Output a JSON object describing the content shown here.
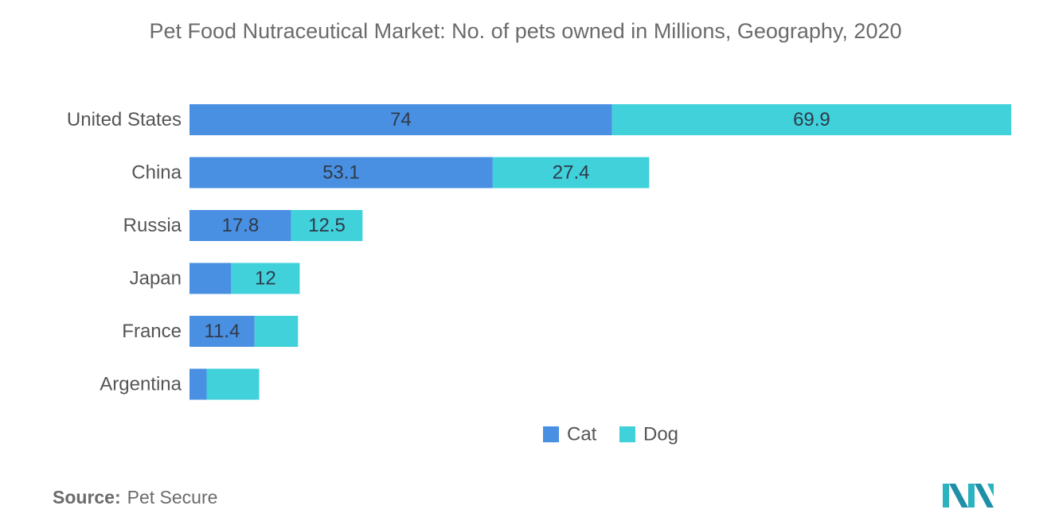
{
  "title": "Pet Food Nutraceutical Market:  No. of pets owned in Millions, Geography, 2020",
  "source": {
    "label": "Source:",
    "text": "Pet Secure"
  },
  "colors": {
    "cat": "#4a90e2",
    "dog": "#40d1db",
    "label_text": "#2f3a4a",
    "axis_text": "#555555"
  },
  "chart_data": {
    "type": "bar",
    "orientation": "horizontal",
    "stacked": true,
    "categories": [
      "United States",
      "China",
      "Russia",
      "Japan",
      "France",
      "Argentina"
    ],
    "series": [
      {
        "name": "Cat",
        "values": [
          74,
          53.1,
          17.8,
          7.3,
          11.4,
          3
        ],
        "labels": [
          "74",
          "53.1",
          "17.8",
          "",
          "11.4",
          ""
        ]
      },
      {
        "name": "Dog",
        "values": [
          69.9,
          27.4,
          12.5,
          12,
          7.6,
          9.2
        ],
        "labels": [
          "69.9",
          "27.4",
          "12.5",
          "12",
          "",
          ""
        ]
      }
    ],
    "xlim": [
      0,
      145
    ],
    "grid": false,
    "legend": "bottom-center"
  }
}
